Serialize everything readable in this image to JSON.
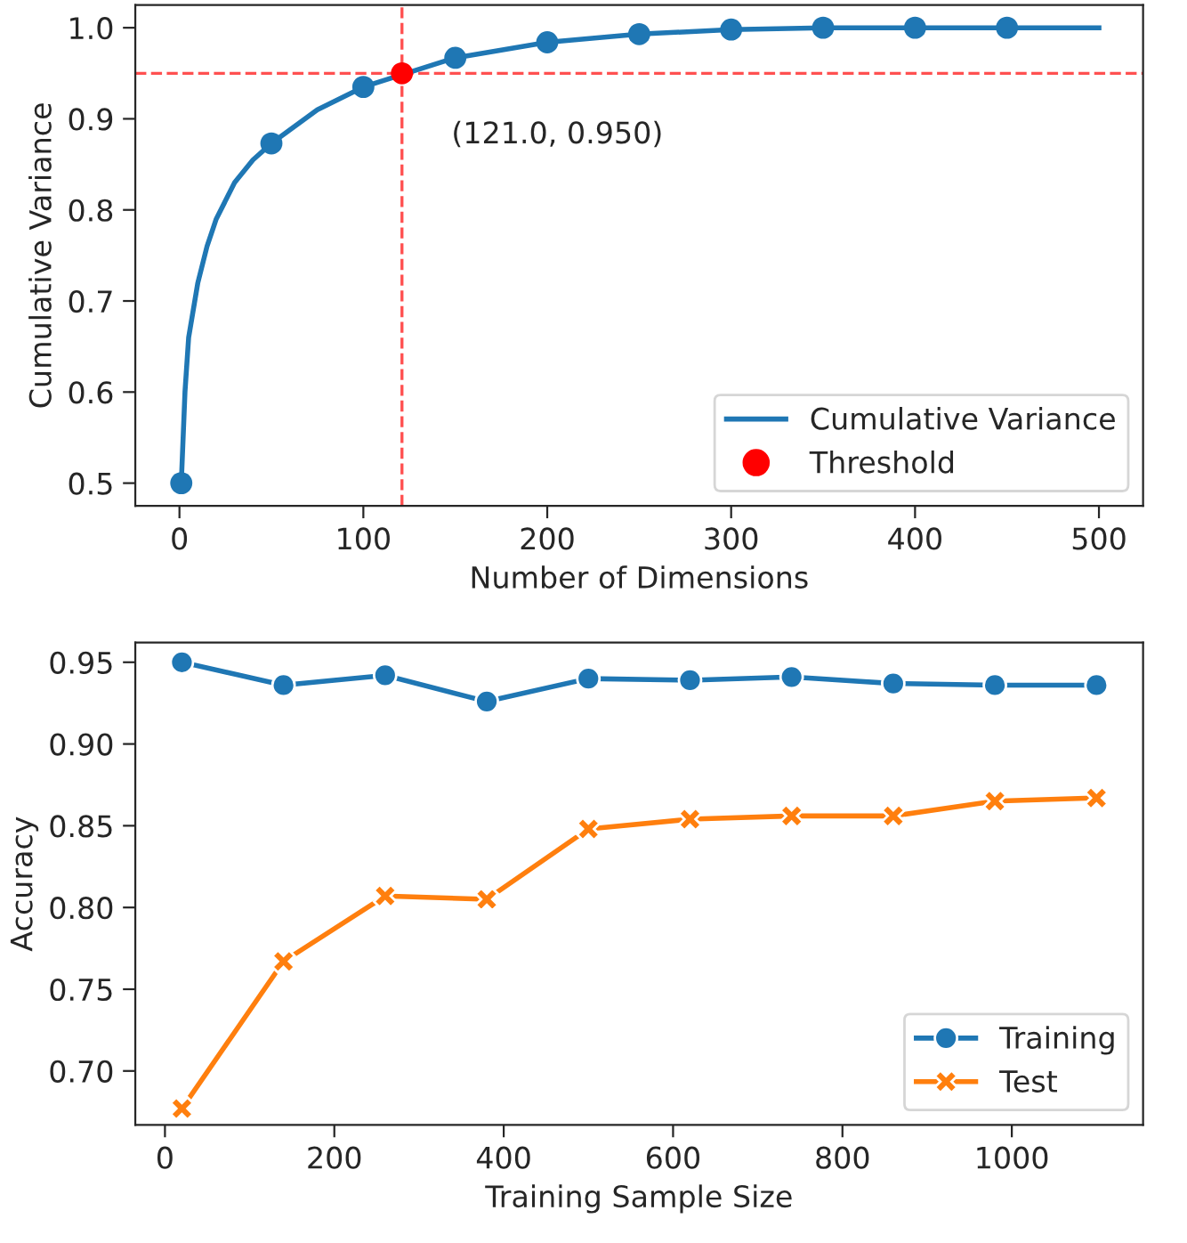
{
  "chart_data": [
    {
      "type": "line",
      "xlabel": "Number of Dimensions",
      "ylabel": "Cumulative Variance",
      "xlim": [
        -24,
        524
      ],
      "xticks": [
        0,
        100,
        200,
        300,
        400,
        500
      ],
      "ylim": [
        0.475,
        1.025
      ],
      "yticks": [
        0.5,
        0.6,
        0.7,
        0.8,
        0.9,
        {
          "value": 1,
          "label": "1.0"
        }
      ],
      "series": [
        {
          "name": "Cumulative Variance",
          "type": "line",
          "color": "#1f77b4",
          "marker": "none",
          "x": [
            1,
            3,
            5,
            10,
            15,
            20,
            30,
            40,
            50,
            75,
            100,
            150,
            200,
            250,
            300,
            350,
            400,
            450,
            500
          ],
          "values": [
            0.5,
            0.6,
            0.66,
            0.72,
            0.76,
            0.79,
            0.83,
            0.855,
            0.873,
            0.91,
            0.935,
            0.967,
            0.984,
            0.993,
            0.998,
            1.0,
            1.0,
            1.0,
            1.0
          ]
        },
        {
          "type": "scatter",
          "color": "#1f77b4",
          "marker": "circle",
          "x": [
            1,
            50,
            100,
            150,
            200,
            250,
            300,
            350,
            400,
            450
          ],
          "values": [
            0.5,
            0.873,
            0.935,
            0.967,
            0.984,
            0.993,
            0.998,
            1.0,
            1.0,
            1.0
          ]
        },
        {
          "name": "Threshold",
          "type": "scatter",
          "color": "#ff0000",
          "marker": "circle",
          "x": [
            121
          ],
          "values": [
            0.95
          ]
        }
      ],
      "ref_lines": [
        {
          "axis": "x",
          "value": 121,
          "color": "#ff5050",
          "line_style": "dashed"
        },
        {
          "axis": "y",
          "value": 0.95,
          "color": "#ff5050",
          "line_style": "dashed"
        }
      ],
      "annotations": [
        {
          "text": "(121.0, 0.950)",
          "x": 121,
          "y": 0.95
        }
      ],
      "legend": "bottom right",
      "grid": false
    },
    {
      "type": "line",
      "xlabel": "Training Sample Size",
      "ylabel": "Accuracy",
      "xlim": [
        -35,
        1155
      ],
      "xticks": [
        0,
        200,
        400,
        600,
        800,
        1000
      ],
      "ylim": [
        0.667,
        0.962
      ],
      "yticks": [
        {
          "value": 0.7,
          "label": "0.70"
        },
        0.75,
        {
          "value": 0.8,
          "label": "0.80"
        },
        0.85,
        {
          "value": 0.9,
          "label": "0.90"
        },
        0.95
      ],
      "x": [
        20,
        140,
        260,
        380,
        500,
        620,
        740,
        860,
        980,
        1100
      ],
      "series": [
        {
          "name": "Training",
          "color": "#1f77b4",
          "marker": "circle",
          "values": [
            0.95,
            0.936,
            0.942,
            0.926,
            0.94,
            0.939,
            0.941,
            0.937,
            0.936,
            0.936
          ]
        },
        {
          "name": "Test",
          "color": "#ff7f0e",
          "marker": "cross",
          "values": [
            0.677,
            0.767,
            0.807,
            0.805,
            0.848,
            0.854,
            0.856,
            0.856,
            0.865,
            0.867
          ]
        }
      ],
      "legend": "bottom right",
      "grid": false,
      "line_style": "solid"
    }
  ]
}
